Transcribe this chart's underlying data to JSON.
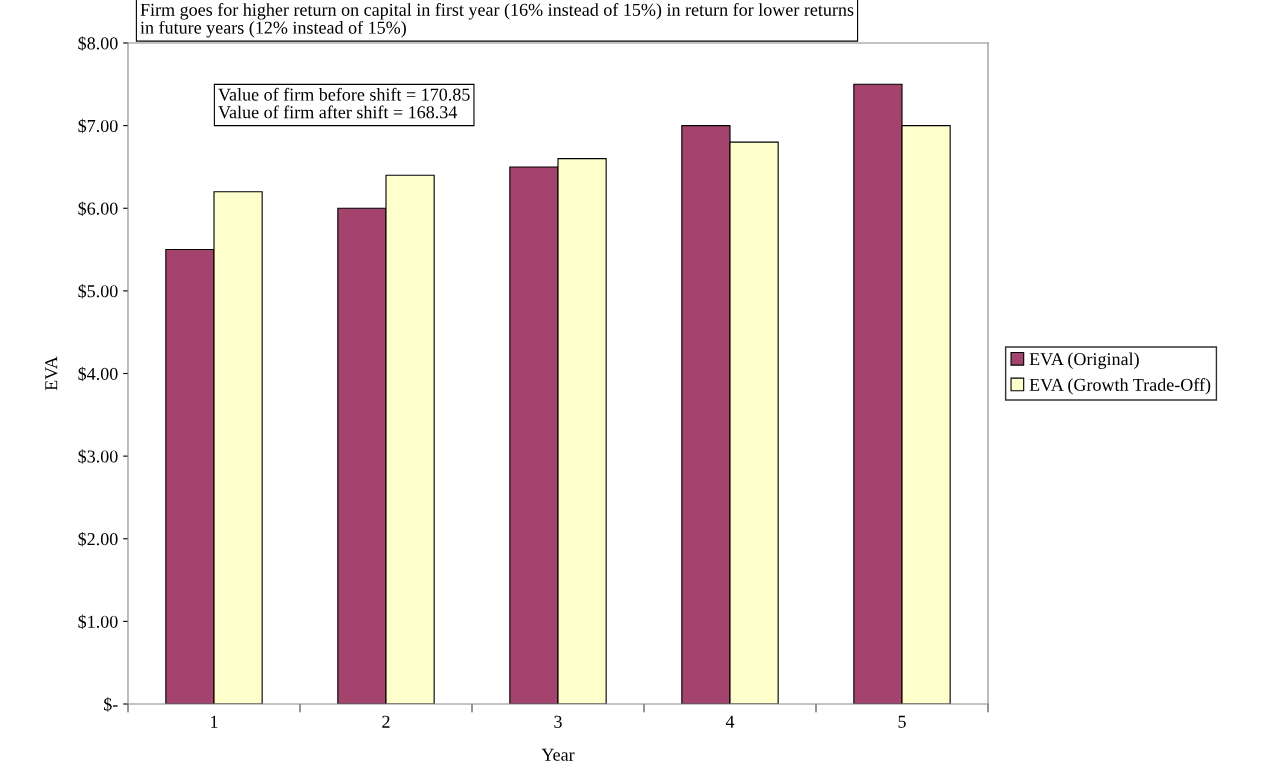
{
  "chart_data": {
    "type": "bar",
    "xlabel": "Year",
    "ylabel": "EVA",
    "categories": [
      "1",
      "2",
      "3",
      "4",
      "5"
    ],
    "series": [
      {
        "name": "EVA (Original)",
        "color": "#a5436f",
        "values": [
          5.5,
          6.0,
          6.5,
          7.0,
          7.5
        ]
      },
      {
        "name": "EVA (Growth Trade-Off)",
        "color": "#ffffcc",
        "values": [
          6.2,
          6.4,
          6.6,
          6.8,
          7.0
        ]
      }
    ],
    "ylim": [
      0,
      8
    ],
    "yticks": [
      {
        "value": 0,
        "label": "$-"
      },
      {
        "value": 1,
        "label": "$1.00"
      },
      {
        "value": 2,
        "label": "$2.00"
      },
      {
        "value": 3,
        "label": "$3.00"
      },
      {
        "value": 4,
        "label": "$4.00"
      },
      {
        "value": 5,
        "label": "$5.00"
      },
      {
        "value": 6,
        "label": "$6.00"
      },
      {
        "value": 7,
        "label": "$7.00"
      },
      {
        "value": 8,
        "label": "$8.00"
      }
    ],
    "annotations": [
      "Firm goes for higher return on capital in first year (16% instead of 15%) in return for lower returns\nin future years (12% instead of 15%)",
      "Value of firm before shift = 170.85\nValue of firm after shift = 168.34"
    ],
    "legend": "right",
    "grid": false
  }
}
